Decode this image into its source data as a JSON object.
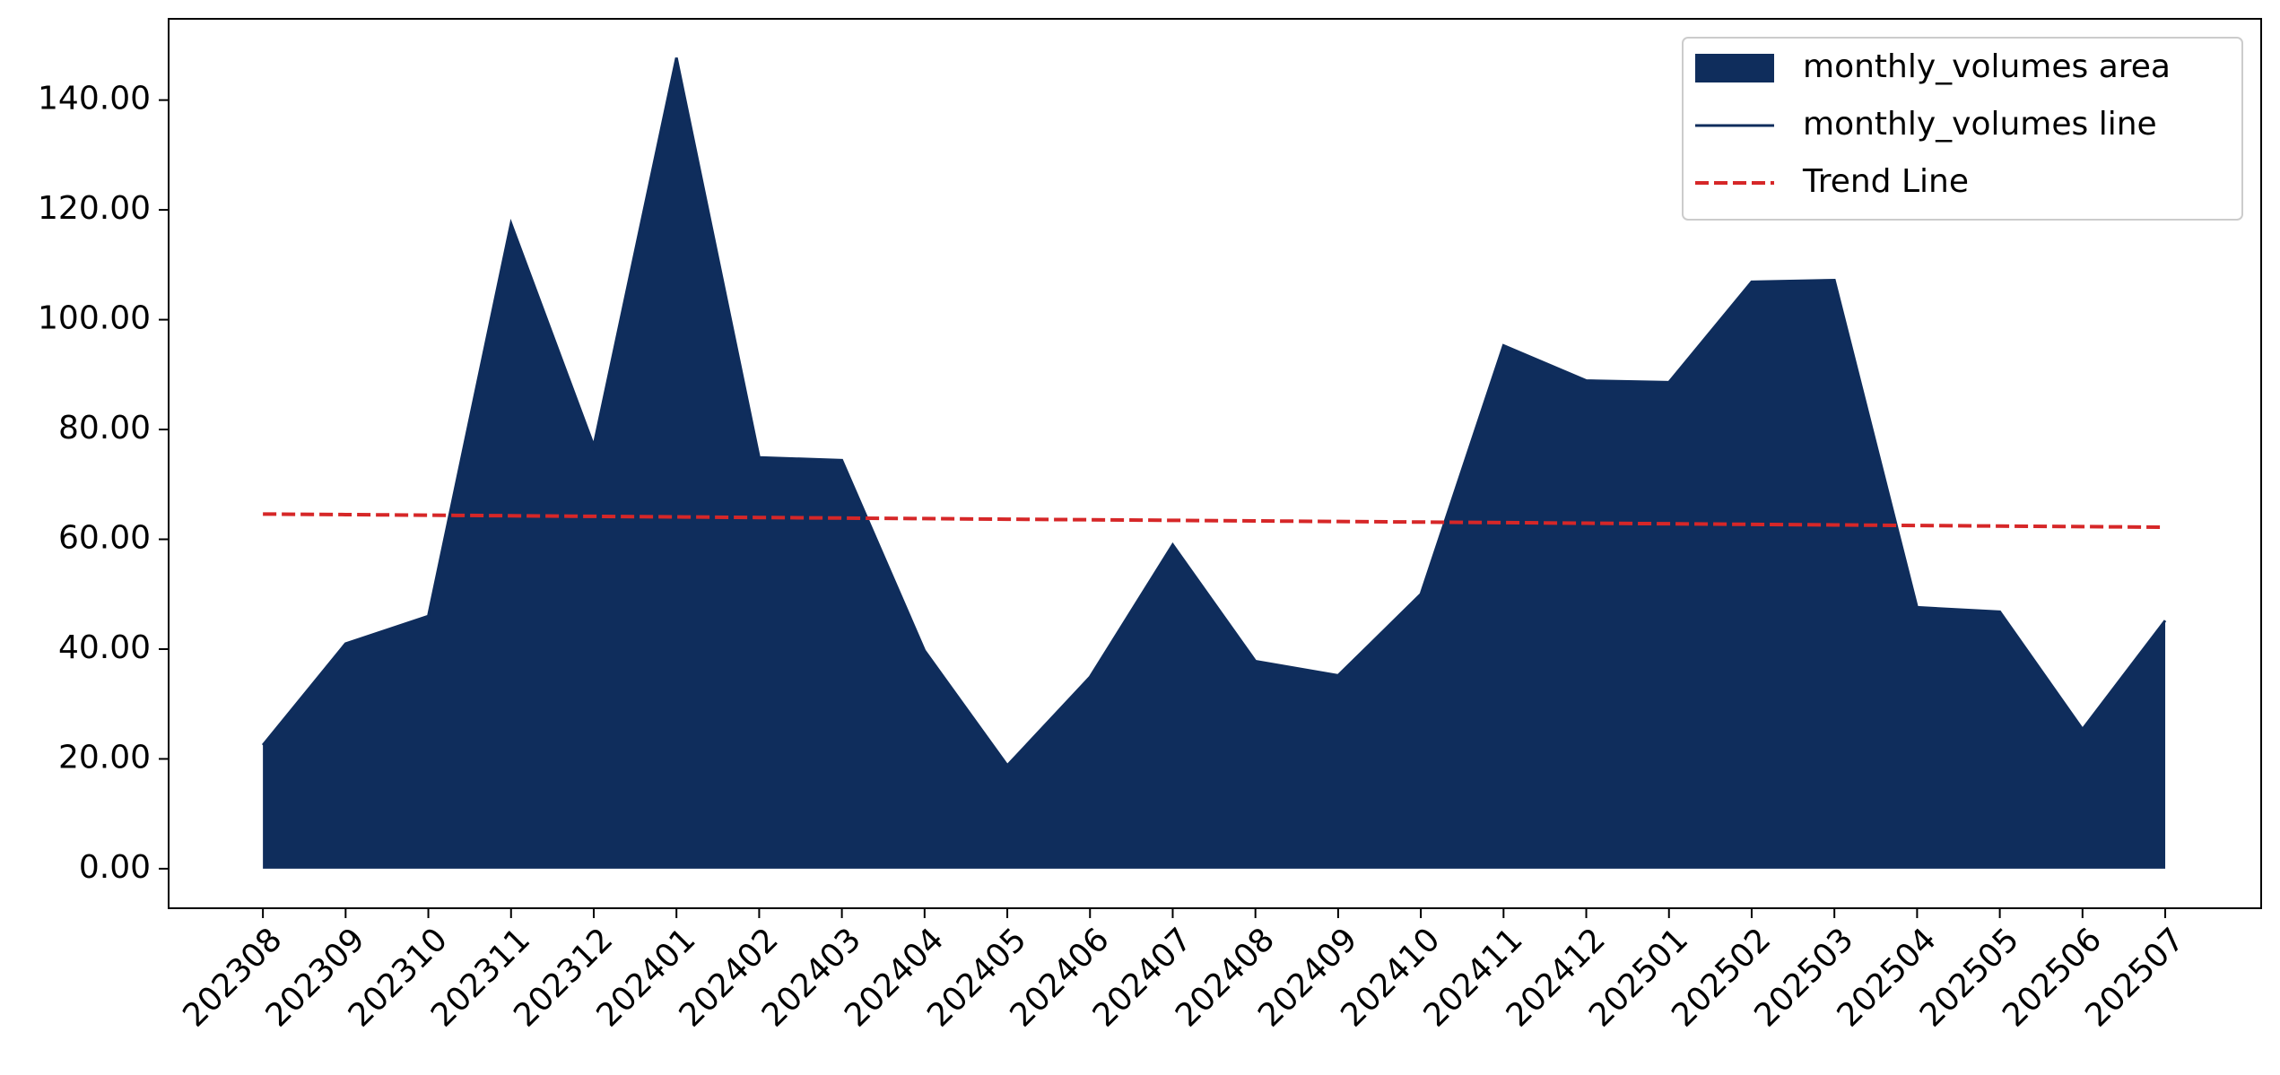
{
  "chart_data": {
    "type": "area",
    "categories": [
      "202308",
      "202309",
      "202310",
      "202311",
      "202312",
      "202401",
      "202402",
      "202403",
      "202404",
      "202405",
      "202406",
      "202407",
      "202408",
      "202409",
      "202410",
      "202411",
      "202412",
      "202501",
      "202502",
      "202503",
      "202504",
      "202505",
      "202506",
      "202507"
    ],
    "series": [
      {
        "name": "monthly_volumes area",
        "style": "area",
        "color": "#0f2d5c",
        "values": [
          22.5,
          41.0,
          46.0,
          117.5,
          77.0,
          147.7,
          74.9,
          74.4,
          39.7,
          18.8,
          34.9,
          59.0,
          37.8,
          35.2,
          50.0,
          95.3,
          88.9,
          88.6,
          106.9,
          107.2,
          47.6,
          46.8,
          25.4,
          45.2
        ]
      },
      {
        "name": "monthly_volumes line",
        "style": "line",
        "color": "#0f2d5c",
        "values": [
          22.5,
          41.0,
          46.0,
          117.5,
          77.0,
          147.7,
          74.9,
          74.4,
          39.7,
          18.8,
          34.9,
          59.0,
          37.8,
          35.2,
          50.0,
          95.3,
          88.9,
          88.6,
          106.9,
          107.2,
          47.6,
          46.8,
          25.4,
          45.2
        ]
      },
      {
        "name": "Trend Line",
        "style": "dashed",
        "color": "#d62728",
        "values": [
          64.6,
          64.5,
          64.39,
          64.29,
          64.18,
          64.08,
          63.97,
          63.87,
          63.77,
          63.66,
          63.56,
          63.45,
          63.35,
          63.24,
          63.14,
          63.04,
          62.93,
          62.83,
          62.72,
          62.62,
          62.51,
          62.41,
          62.31,
          62.2
        ]
      }
    ],
    "ylim": [
      -7.2,
      154.8
    ],
    "yticks": [
      {
        "value": 0,
        "label": "0.00"
      },
      {
        "value": 20,
        "label": "20.00"
      },
      {
        "value": 40,
        "label": "40.00"
      },
      {
        "value": 60,
        "label": "60.00"
      },
      {
        "value": 80,
        "label": "80.00"
      },
      {
        "value": 100,
        "label": "100.00"
      },
      {
        "value": 120,
        "label": "120.00"
      },
      {
        "value": 140,
        "label": "140.00"
      }
    ],
    "legend": "upper right",
    "grid": false
  }
}
